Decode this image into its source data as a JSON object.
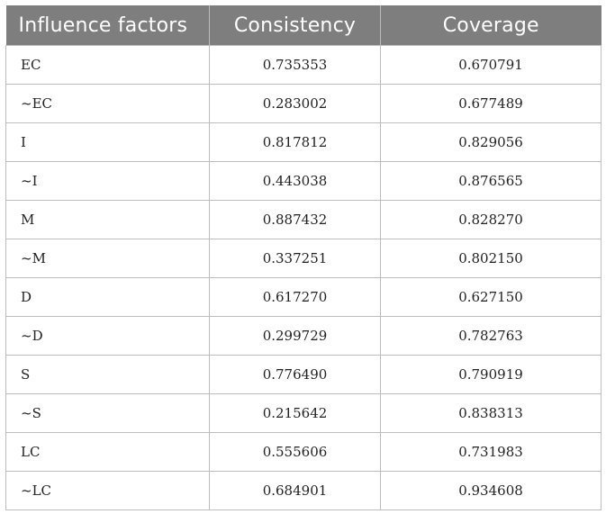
{
  "table": {
    "headers": [
      "Influence factors",
      "Consistency",
      "Coverage"
    ],
    "rows": [
      [
        "EC",
        "0.735353",
        "0.670791"
      ],
      [
        "~EC",
        "0.283002",
        "0.677489"
      ],
      [
        "I",
        "0.817812",
        "0.829056"
      ],
      [
        "~I",
        "0.443038",
        "0.876565"
      ],
      [
        "M",
        "0.887432",
        "0.828270"
      ],
      [
        "~M",
        "0.337251",
        "0.802150"
      ],
      [
        "D",
        "0.617270",
        "0.627150"
      ],
      [
        "~D",
        "0.299729",
        "0.782763"
      ],
      [
        "S",
        "0.776490",
        "0.790919"
      ],
      [
        "~S",
        "0.215642",
        "0.838313"
      ],
      [
        "LC",
        "0.555606",
        "0.731983"
      ],
      [
        "~LC",
        "0.684901",
        "0.934608"
      ]
    ]
  },
  "colors": {
    "header_bg": "#7e7e7e",
    "header_text": "#ffffff",
    "border": "#bdbdbd",
    "body_text": "#222222"
  }
}
